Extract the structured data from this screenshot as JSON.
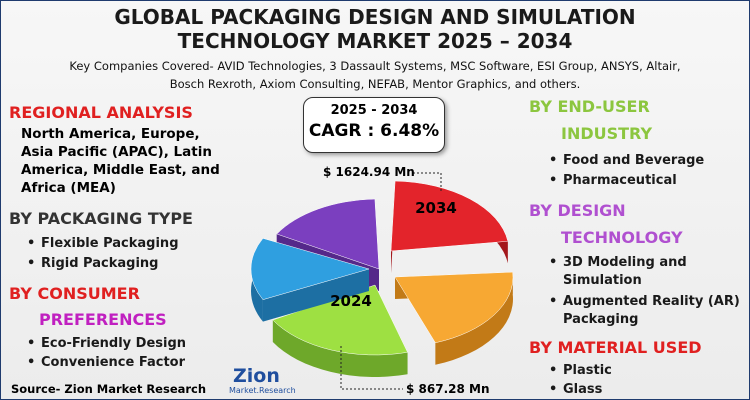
{
  "header": {
    "title": [
      "GLOBAL PACKAGING DESIGN AND SIMULATION",
      "TECHNOLOGY MARKET 2025 – 2034"
    ],
    "subtitle": [
      "Key Companies Covered- AVID Technologies, 3 Dassault Systems, MSC Software, ESI Group, ANSYS, Altair,",
      "Bosch Rexroth, Axiom Consulting, NEFAB, Mentor Graphics, and others."
    ]
  },
  "cagr": {
    "period": "2025 - 2034",
    "value": "CAGR : 6.48%"
  },
  "pie": {
    "top_label": "2034",
    "top_callout": "$ 1624.94 Mn",
    "bottom_label": "2024",
    "bottom_callout": "$ 867.28 Mn"
  },
  "left": {
    "regional": {
      "heading": [
        "REGIONAL ANALYSIS"
      ],
      "text": "North America, Europe, Asia Pacific (APAC), Latin America, Middle East, and Africa (MEA)"
    },
    "packaging": {
      "heading": [
        "BY PACKAGING TYPE"
      ],
      "items": [
        "Flexible Packaging",
        "Rigid Packaging"
      ]
    },
    "consumer": {
      "heading": [
        "BY CONSUMER",
        "PREFERENCES"
      ],
      "items": [
        "Eco-Friendly Design",
        "Convenience Factor"
      ]
    }
  },
  "right": {
    "end_user": {
      "heading": [
        "BY END-USER",
        "INDUSTRY"
      ],
      "items": [
        "Food and Beverage",
        "Pharmaceutical"
      ]
    },
    "design": {
      "heading": [
        "BY DESIGN",
        "TECHNOLOGY"
      ],
      "items": [
        "3D Modeling and Simulation",
        "Augmented Reality (AR) Packaging"
      ]
    },
    "material": {
      "heading": [
        "BY MATERIAL USED"
      ],
      "items": [
        "Plastic",
        "Glass"
      ]
    }
  },
  "source": "Source- Zion Market Research",
  "logo": {
    "name": "Zion",
    "tagline": "Market.Research"
  }
}
